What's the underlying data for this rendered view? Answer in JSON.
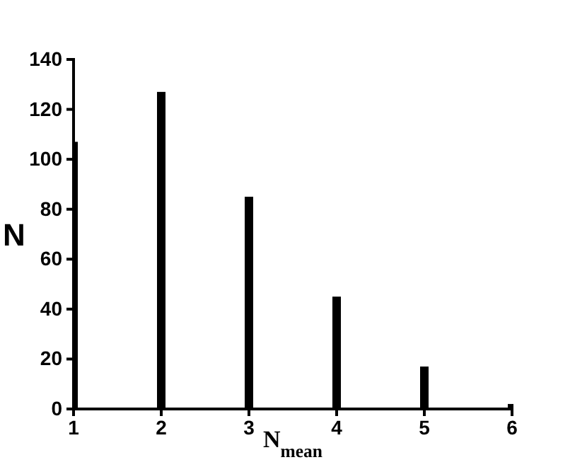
{
  "chart_data": {
    "type": "bar",
    "xlabel": "N$_{mean}$",
    "ylabel": "N",
    "x": [
      1,
      2,
      3,
      4,
      5,
      6
    ],
    "values": [
      107,
      127,
      85,
      45,
      17,
      2
    ],
    "color": "#000000",
    "xlim": [
      1,
      6
    ],
    "xticks": [
      1,
      2,
      3,
      4,
      5,
      6
    ],
    "ylim": [
      0,
      140
    ],
    "yticks": [
      0,
      20,
      40,
      60,
      80,
      100,
      120,
      140
    ],
    "grid": false
  }
}
